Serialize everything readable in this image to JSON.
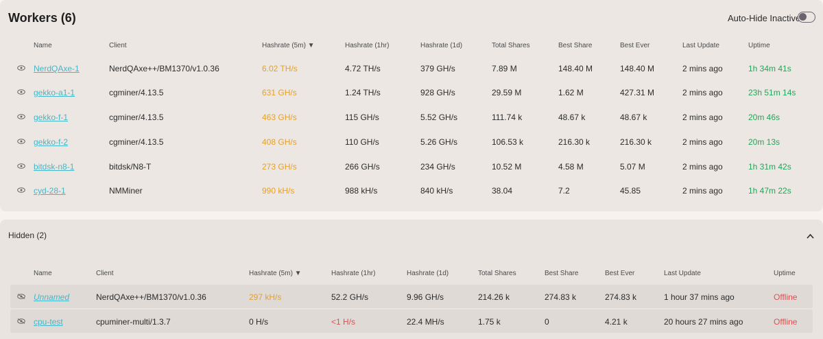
{
  "workers": {
    "title": "Workers (6)",
    "auto_hide_label": "Auto-Hide Inactive",
    "columns": [
      "Name",
      "Client",
      "Hashrate (5m) ▼",
      "Hashrate (1hr)",
      "Hashrate (1d)",
      "Total Shares",
      "Best Share",
      "Best Ever",
      "Last Update",
      "Uptime"
    ],
    "rows": [
      {
        "name": "NerdQAxe-1",
        "client": "NerdQAxe++/BM1370/v1.0.36",
        "hr5m": "6.02 TH/s",
        "hr1h": "4.72 TH/s",
        "hr1d": "379 GH/s",
        "shares": "7.89 M",
        "best": "148.40 M",
        "ever": "148.40 M",
        "updated": "2 mins ago",
        "uptime": "1h 34m 41s"
      },
      {
        "name": "gekko-a1-1",
        "client": "cgminer/4.13.5",
        "hr5m": "631 GH/s",
        "hr1h": "1.24 TH/s",
        "hr1d": "928 GH/s",
        "shares": "29.59 M",
        "best": "1.62 M",
        "ever": "427.31 M",
        "updated": "2 mins ago",
        "uptime": "23h 51m 14s"
      },
      {
        "name": "gekko-f-1",
        "client": "cgminer/4.13.5",
        "hr5m": "463 GH/s",
        "hr1h": "115 GH/s",
        "hr1d": "5.52 GH/s",
        "shares": "111.74 k",
        "best": "48.67 k",
        "ever": "48.67 k",
        "updated": "2 mins ago",
        "uptime": "20m 46s"
      },
      {
        "name": "gekko-f-2",
        "client": "cgminer/4.13.5",
        "hr5m": "408 GH/s",
        "hr1h": "110 GH/s",
        "hr1d": "5.26 GH/s",
        "shares": "106.53 k",
        "best": "216.30 k",
        "ever": "216.30 k",
        "updated": "2 mins ago",
        "uptime": "20m 13s"
      },
      {
        "name": "bitdsk-n8-1",
        "client": "bitdsk/N8-T",
        "hr5m": "273 GH/s",
        "hr1h": "266 GH/s",
        "hr1d": "234 GH/s",
        "shares": "10.52 M",
        "best": "4.58 M",
        "ever": "5.07 M",
        "updated": "2 mins ago",
        "uptime": "1h 31m 42s"
      },
      {
        "name": "cyd-28-1",
        "client": "NMMiner",
        "hr5m": "990 kH/s",
        "hr1h": "988 kH/s",
        "hr1d": "840 kH/s",
        "shares": "38.04",
        "best": "7.2",
        "ever": "45.85",
        "updated": "2 mins ago",
        "uptime": "1h 47m 22s"
      }
    ]
  },
  "hidden": {
    "title": "Hidden (2)",
    "columns": [
      "Name",
      "Client",
      "Hashrate (5m) ▼",
      "Hashrate (1hr)",
      "Hashrate (1d)",
      "Total Shares",
      "Best Share",
      "Best Ever",
      "Last Update",
      "Uptime"
    ],
    "rows": [
      {
        "name": "Unnamed",
        "client": "NerdQAxe++/BM1370/v1.0.36",
        "hr5m": "297 kH/s",
        "hr1h": "52.2 GH/s",
        "hr1d": "9.96 GH/s",
        "shares": "214.26 k",
        "best": "274.83 k",
        "ever": "274.83 k",
        "updated": "1 hour 37 mins ago",
        "uptime": "Offline"
      },
      {
        "name": "cpu-test",
        "client": "cpuminer-multi/1.3.7",
        "hr5m": "0 H/s",
        "hr1h": "<1 H/s",
        "hr1d": "22.4 MH/s",
        "shares": "1.75 k",
        "best": "0",
        "ever": "4.21 k",
        "updated": "20 hours 27 mins ago",
        "uptime": "Offline"
      }
    ]
  },
  "colors": {
    "link": "#45b6c8",
    "hashrate_5m": "#e5a12a",
    "uptime_online": "#23a45a",
    "uptime_offline": "#e05050"
  }
}
